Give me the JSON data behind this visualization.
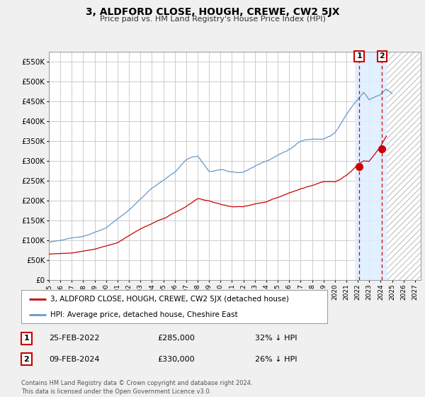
{
  "title": "3, ALDFORD CLOSE, HOUGH, CREWE, CW2 5JX",
  "subtitle": "Price paid vs. HM Land Registry's House Price Index (HPI)",
  "ylabel_ticks": [
    "£0",
    "£50K",
    "£100K",
    "£150K",
    "£200K",
    "£250K",
    "£300K",
    "£350K",
    "£400K",
    "£450K",
    "£500K",
    "£550K"
  ],
  "ytick_values": [
    0,
    50000,
    100000,
    150000,
    200000,
    250000,
    300000,
    350000,
    400000,
    450000,
    500000,
    550000
  ],
  "ylim": [
    0,
    575000
  ],
  "xlim_start": 1995.0,
  "xlim_end": 2027.5,
  "background_color": "#f0f0f0",
  "plot_bg_color": "#ffffff",
  "grid_color": "#cccccc",
  "hpi_color": "#6699cc",
  "price_color": "#cc0000",
  "legend_label_price": "3, ALDFORD CLOSE, HOUGH, CREWE, CW2 5JX (detached house)",
  "legend_label_hpi": "HPI: Average price, detached house, Cheshire East",
  "transaction1_date": "25-FEB-2022",
  "transaction1_price": "£285,000",
  "transaction1_note": "32% ↓ HPI",
  "transaction2_date": "09-FEB-2024",
  "transaction2_price": "£330,000",
  "transaction2_note": "26% ↓ HPI",
  "footer": "Contains HM Land Registry data © Crown copyright and database right 2024.\nThis data is licensed under the Open Government Licence v3.0.",
  "marker1_x": 2022.12,
  "marker1_y": 285000,
  "marker2_x": 2024.11,
  "marker2_y": 330000,
  "light_blue_start": 2021.75,
  "light_blue_end": 2024.5,
  "hatch_start": 2024.5,
  "hatch_end": 2027.5
}
